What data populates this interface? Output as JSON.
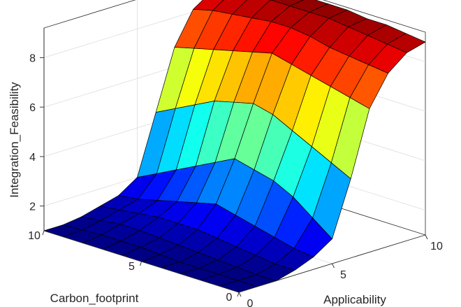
{
  "chart_data": {
    "type": "surface",
    "title": "",
    "xlabel": "Carbon_footprint",
    "ylabel": "Applicability",
    "zlabel": "Integration_Feasibility",
    "xlim": [
      0,
      10
    ],
    "ylim": [
      0,
      10
    ],
    "zlim": [
      1,
      9.2
    ],
    "xticks": [
      0,
      5,
      10
    ],
    "yticks": [
      0,
      5,
      10
    ],
    "zticks": [
      2,
      4,
      6,
      8
    ],
    "grid": true,
    "colormap": "jet",
    "x": [
      0,
      1,
      2,
      3,
      4,
      5,
      6,
      7,
      8,
      9,
      10
    ],
    "y": [
      0,
      1,
      2,
      3,
      4,
      5,
      6,
      7,
      8,
      9,
      10
    ],
    "z": [
      [
        1.0,
        1.0,
        1.0,
        1.2,
        1.5,
        2.0,
        4.2,
        6.8,
        8.0,
        8.6,
        8.8
      ],
      [
        1.0,
        1.0,
        1.0,
        1.2,
        1.6,
        2.6,
        4.6,
        7.0,
        8.1,
        8.7,
        8.9
      ],
      [
        1.0,
        1.0,
        1.05,
        1.3,
        1.8,
        3.2,
        5.0,
        7.2,
        8.2,
        8.8,
        9.0
      ],
      [
        1.0,
        1.0,
        1.1,
        1.4,
        2.0,
        3.6,
        5.4,
        7.4,
        8.3,
        8.9,
        9.0
      ],
      [
        1.0,
        1.0,
        1.15,
        1.5,
        2.2,
        3.8,
        5.8,
        7.6,
        8.5,
        9.0,
        9.1
      ],
      [
        1.0,
        1.05,
        1.2,
        1.6,
        2.4,
        4.0,
        6.0,
        7.8,
        8.6,
        9.0,
        9.1
      ],
      [
        1.0,
        1.1,
        1.25,
        1.6,
        2.2,
        3.6,
        5.8,
        7.6,
        8.6,
        9.0,
        9.1
      ],
      [
        1.0,
        1.1,
        1.3,
        1.6,
        2.0,
        3.2,
        5.6,
        7.4,
        8.5,
        9.0,
        9.1
      ],
      [
        1.0,
        1.1,
        1.3,
        1.5,
        1.8,
        2.8,
        5.2,
        7.2,
        8.4,
        8.9,
        9.0
      ],
      [
        1.0,
        1.05,
        1.2,
        1.4,
        1.6,
        2.4,
        4.8,
        7.0,
        8.3,
        8.8,
        8.9
      ],
      [
        1.0,
        1.0,
        1.1,
        1.3,
        1.5,
        2.0,
        4.4,
        6.8,
        8.1,
        8.6,
        8.8
      ]
    ]
  }
}
